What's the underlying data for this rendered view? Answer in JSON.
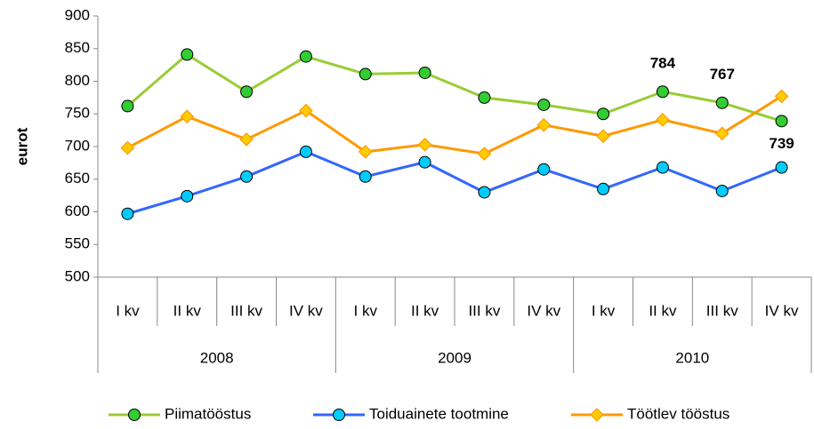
{
  "chart_data": {
    "type": "line",
    "y_label": "eurot",
    "categories": [
      "I kv",
      "II kv",
      "III kv",
      "IV kv",
      "I kv",
      "II kv",
      "III kv",
      "IV kv",
      "I kv",
      "II kv",
      "III kv",
      "IV kv"
    ],
    "groups": [
      "2008",
      "2009",
      "2010"
    ],
    "ylim": [
      500,
      900
    ],
    "yticks": [
      500,
      550,
      600,
      650,
      700,
      750,
      800,
      850,
      900
    ],
    "legend": "bottom",
    "series": [
      {
        "name": "Piimatööstus",
        "color": "#99cc33",
        "marker_color": "#33cc33",
        "marker": "circle",
        "values": [
          762,
          841,
          784,
          838,
          811,
          813,
          775,
          764,
          750,
          784,
          767,
          739
        ],
        "labeled": [
          false,
          false,
          false,
          false,
          false,
          false,
          false,
          false,
          false,
          true,
          true,
          true
        ]
      },
      {
        "name": "Toiduainete tootmine",
        "color": "#3366ff",
        "marker_color": "#00ccff",
        "marker": "circle",
        "values": [
          597,
          624,
          654,
          692,
          654,
          676,
          630,
          665,
          635,
          668,
          632,
          668
        ]
      },
      {
        "name": "Töötlev tööstus",
        "color": "#ff9900",
        "marker_color": "#ffcc00",
        "marker": "diamond",
        "values": [
          698,
          746,
          711,
          755,
          692,
          703,
          689,
          733,
          716,
          741,
          720,
          777
        ]
      }
    ]
  }
}
